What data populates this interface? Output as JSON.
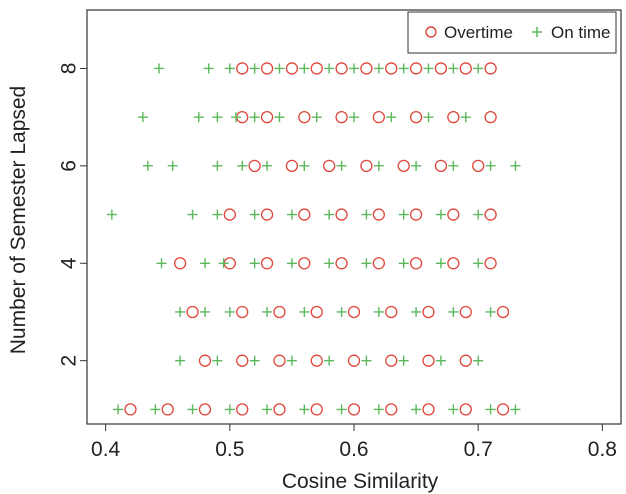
{
  "chart_data": {
    "type": "scatter",
    "xlabel": "Cosine Similarity",
    "ylabel": "Number of Semester Lapsed",
    "xlim": [
      0.385,
      0.815
    ],
    "ylim": [
      0.7,
      9.2
    ],
    "xticks": [
      0.4,
      0.5,
      0.6,
      0.7,
      0.8
    ],
    "xtick_labels": [
      "0.4",
      "0.5",
      "0.6",
      "0.7",
      "0.8"
    ],
    "yticks": [
      2,
      4,
      6,
      8
    ],
    "ytick_labels": [
      "2",
      "4",
      "6",
      "8"
    ],
    "grid": false,
    "legend_position": "top-right",
    "series": [
      {
        "name": "Overtime",
        "marker": "circle",
        "color": "#e0453a",
        "points": [
          [
            0.51,
            8
          ],
          [
            0.53,
            8
          ],
          [
            0.55,
            8
          ],
          [
            0.57,
            8
          ],
          [
            0.59,
            8
          ],
          [
            0.61,
            8
          ],
          [
            0.63,
            8
          ],
          [
            0.65,
            8
          ],
          [
            0.67,
            8
          ],
          [
            0.69,
            8
          ],
          [
            0.71,
            8
          ],
          [
            0.51,
            7
          ],
          [
            0.53,
            7
          ],
          [
            0.56,
            7
          ],
          [
            0.59,
            7
          ],
          [
            0.62,
            7
          ],
          [
            0.65,
            7
          ],
          [
            0.68,
            7
          ],
          [
            0.71,
            7
          ],
          [
            0.52,
            6
          ],
          [
            0.55,
            6
          ],
          [
            0.58,
            6
          ],
          [
            0.61,
            6
          ],
          [
            0.64,
            6
          ],
          [
            0.67,
            6
          ],
          [
            0.7,
            6
          ],
          [
            0.5,
            5
          ],
          [
            0.53,
            5
          ],
          [
            0.56,
            5
          ],
          [
            0.59,
            5
          ],
          [
            0.62,
            5
          ],
          [
            0.65,
            5
          ],
          [
            0.68,
            5
          ],
          [
            0.71,
            5
          ],
          [
            0.46,
            4
          ],
          [
            0.5,
            4
          ],
          [
            0.53,
            4
          ],
          [
            0.56,
            4
          ],
          [
            0.59,
            4
          ],
          [
            0.62,
            4
          ],
          [
            0.65,
            4
          ],
          [
            0.68,
            4
          ],
          [
            0.71,
            4
          ],
          [
            0.47,
            3
          ],
          [
            0.51,
            3
          ],
          [
            0.54,
            3
          ],
          [
            0.57,
            3
          ],
          [
            0.6,
            3
          ],
          [
            0.63,
            3
          ],
          [
            0.66,
            3
          ],
          [
            0.69,
            3
          ],
          [
            0.72,
            3
          ],
          [
            0.48,
            2
          ],
          [
            0.51,
            2
          ],
          [
            0.54,
            2
          ],
          [
            0.57,
            2
          ],
          [
            0.6,
            2
          ],
          [
            0.63,
            2
          ],
          [
            0.66,
            2
          ],
          [
            0.69,
            2
          ],
          [
            0.42,
            1
          ],
          [
            0.45,
            1
          ],
          [
            0.48,
            1
          ],
          [
            0.51,
            1
          ],
          [
            0.54,
            1
          ],
          [
            0.57,
            1
          ],
          [
            0.6,
            1
          ],
          [
            0.63,
            1
          ],
          [
            0.66,
            1
          ],
          [
            0.69,
            1
          ],
          [
            0.72,
            1
          ]
        ]
      },
      {
        "name": "On time",
        "marker": "plus",
        "color": "#5cb85c",
        "points": [
          [
            0.443,
            8
          ],
          [
            0.483,
            8
          ],
          [
            0.5,
            8
          ],
          [
            0.52,
            8
          ],
          [
            0.54,
            8
          ],
          [
            0.56,
            8
          ],
          [
            0.58,
            8
          ],
          [
            0.6,
            8
          ],
          [
            0.62,
            8
          ],
          [
            0.64,
            8
          ],
          [
            0.66,
            8
          ],
          [
            0.68,
            8
          ],
          [
            0.7,
            8
          ],
          [
            0.43,
            7
          ],
          [
            0.475,
            7
          ],
          [
            0.49,
            7
          ],
          [
            0.505,
            7
          ],
          [
            0.52,
            7
          ],
          [
            0.54,
            7
          ],
          [
            0.57,
            7
          ],
          [
            0.6,
            7
          ],
          [
            0.63,
            7
          ],
          [
            0.66,
            7
          ],
          [
            0.69,
            7
          ],
          [
            0.434,
            6
          ],
          [
            0.454,
            6
          ],
          [
            0.49,
            6
          ],
          [
            0.51,
            6
          ],
          [
            0.53,
            6
          ],
          [
            0.56,
            6
          ],
          [
            0.59,
            6
          ],
          [
            0.62,
            6
          ],
          [
            0.65,
            6
          ],
          [
            0.68,
            6
          ],
          [
            0.71,
            6
          ],
          [
            0.73,
            6
          ],
          [
            0.405,
            5
          ],
          [
            0.47,
            5
          ],
          [
            0.49,
            5
          ],
          [
            0.52,
            5
          ],
          [
            0.55,
            5
          ],
          [
            0.58,
            5
          ],
          [
            0.61,
            5
          ],
          [
            0.64,
            5
          ],
          [
            0.67,
            5
          ],
          [
            0.7,
            5
          ],
          [
            0.445,
            4
          ],
          [
            0.48,
            4
          ],
          [
            0.495,
            4
          ],
          [
            0.52,
            4
          ],
          [
            0.55,
            4
          ],
          [
            0.58,
            4
          ],
          [
            0.61,
            4
          ],
          [
            0.64,
            4
          ],
          [
            0.67,
            4
          ],
          [
            0.7,
            4
          ],
          [
            0.46,
            3
          ],
          [
            0.48,
            3
          ],
          [
            0.5,
            3
          ],
          [
            0.53,
            3
          ],
          [
            0.56,
            3
          ],
          [
            0.59,
            3
          ],
          [
            0.62,
            3
          ],
          [
            0.65,
            3
          ],
          [
            0.68,
            3
          ],
          [
            0.71,
            3
          ],
          [
            0.46,
            2
          ],
          [
            0.49,
            2
          ],
          [
            0.52,
            2
          ],
          [
            0.55,
            2
          ],
          [
            0.58,
            2
          ],
          [
            0.61,
            2
          ],
          [
            0.64,
            2
          ],
          [
            0.67,
            2
          ],
          [
            0.7,
            2
          ],
          [
            0.41,
            1
          ],
          [
            0.44,
            1
          ],
          [
            0.47,
            1
          ],
          [
            0.5,
            1
          ],
          [
            0.53,
            1
          ],
          [
            0.56,
            1
          ],
          [
            0.59,
            1
          ],
          [
            0.62,
            1
          ],
          [
            0.65,
            1
          ],
          [
            0.68,
            1
          ],
          [
            0.71,
            1
          ],
          [
            0.73,
            1
          ]
        ]
      }
    ]
  }
}
